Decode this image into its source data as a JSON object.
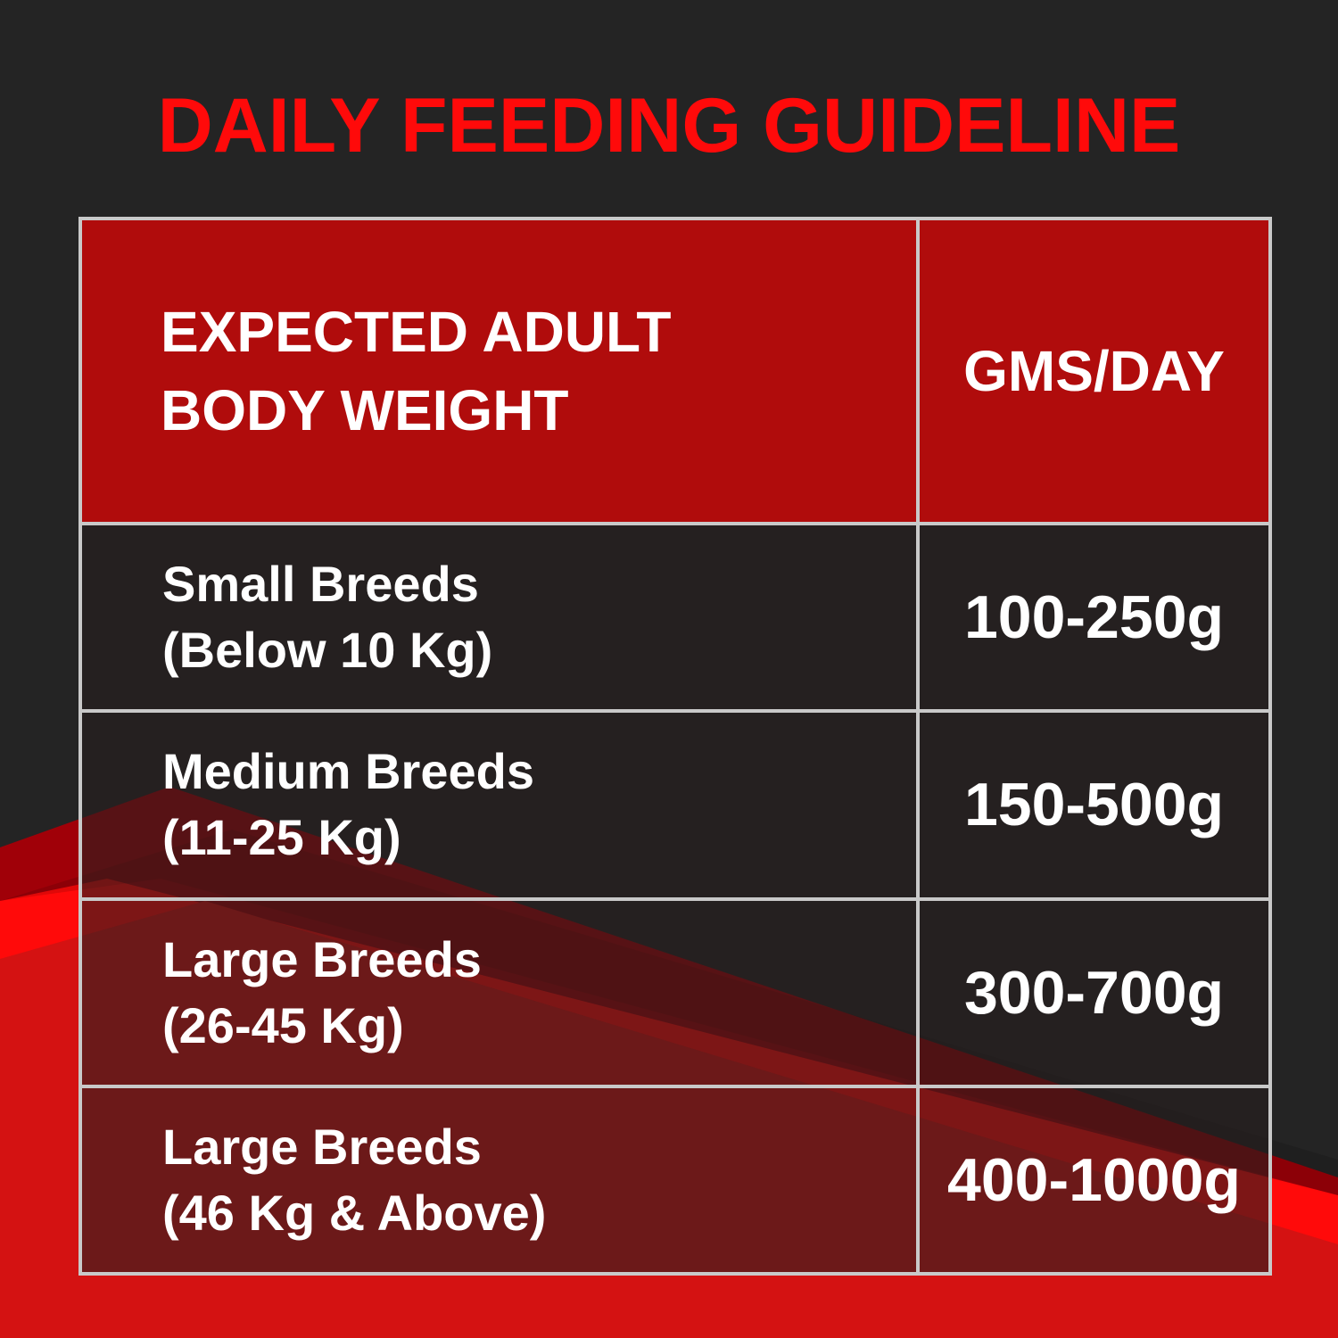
{
  "title": "DAILY FEEDING GUIDELINE",
  "colors": {
    "background": "#242424",
    "title": "#ff0a0a",
    "header": "#b00c0c",
    "accent_red": "#d41212",
    "border": "#c9c9c9"
  },
  "table": {
    "headers": [
      "EXPECTED ADULT",
      "BODY WEIGHT",
      "GMS/DAY"
    ],
    "rows": [
      {
        "breed": "Small Breeds",
        "weight": "(Below 10 Kg)",
        "amount": "100-250g"
      },
      {
        "breed": "Medium Breeds",
        "weight": "(11-25 Kg)",
        "amount": "150-500g"
      },
      {
        "breed": "Large Breeds",
        "weight": "(26-45 Kg)",
        "amount": "300-700g"
      },
      {
        "breed": "Large Breeds",
        "weight": "(46 Kg & Above)",
        "amount": "400-1000g"
      }
    ]
  }
}
